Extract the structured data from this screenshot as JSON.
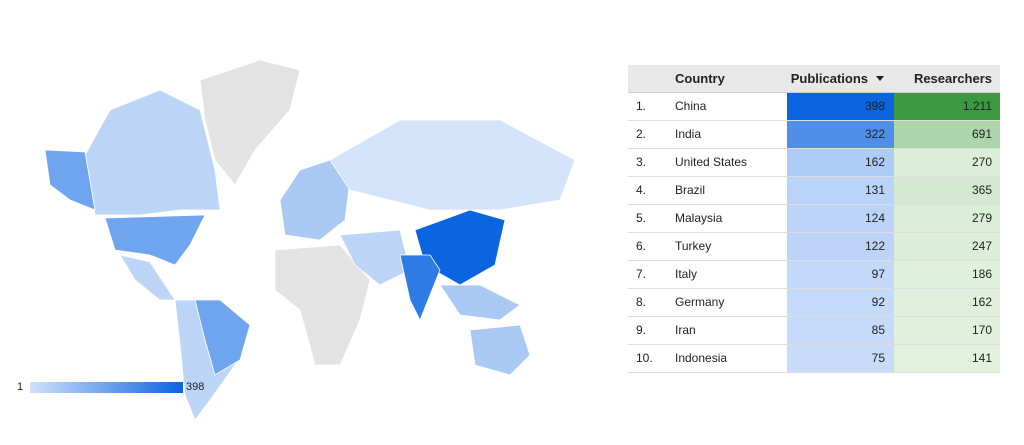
{
  "map": {
    "legend_min": 1,
    "legend_max": 398
  },
  "table": {
    "headers": {
      "country": "Country",
      "publications": "Publications",
      "researchers": "Researchers"
    },
    "rows": [
      {
        "rank": "1.",
        "country": "China",
        "publications": 398,
        "researchers": {
          "value": 1211,
          "label": "1.211"
        }
      },
      {
        "rank": "2.",
        "country": "India",
        "publications": 322,
        "researchers": 691
      },
      {
        "rank": "3.",
        "country": "United States",
        "publications": 162,
        "researchers": 270
      },
      {
        "rank": "4.",
        "country": "Brazil",
        "publications": 131,
        "researchers": 365
      },
      {
        "rank": "5.",
        "country": "Malaysia",
        "publications": 124,
        "researchers": 279
      },
      {
        "rank": "6.",
        "country": "Turkey",
        "publications": 122,
        "researchers": 247
      },
      {
        "rank": "7.",
        "country": "Italy",
        "publications": 97,
        "researchers": 186
      },
      {
        "rank": "8.",
        "country": "Germany",
        "publications": 92,
        "researchers": 162
      },
      {
        "rank": "9.",
        "country": "Iran",
        "publications": 85,
        "researchers": 170
      },
      {
        "rank": "10.",
        "country": "Indonesia",
        "publications": 75,
        "researchers": 141
      }
    ]
  }
}
